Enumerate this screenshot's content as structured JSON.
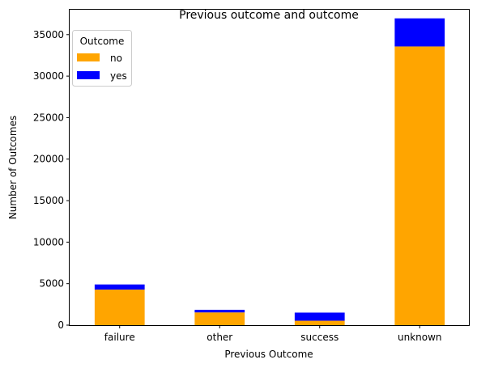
{
  "chart_data": {
    "type": "bar",
    "stacked": true,
    "title": "Previous outcome and outcome",
    "xlabel": "Previous Outcome",
    "ylabel": "Number of Outcomes",
    "categories": [
      "failure",
      "other",
      "success",
      "unknown"
    ],
    "series": [
      {
        "name": "no",
        "color": "#FFA500",
        "values": [
          4283,
          1533,
          533,
          33573
        ]
      },
      {
        "name": "yes",
        "color": "#0000FF",
        "values": [
          618,
          307,
          978,
          3386
        ]
      }
    ],
    "ylim": [
      0,
      38000
    ],
    "yticks": [
      0,
      5000,
      10000,
      15000,
      20000,
      25000,
      30000,
      35000
    ],
    "legend": {
      "title": "Outcome",
      "position": "top-left"
    },
    "grid": false
  }
}
